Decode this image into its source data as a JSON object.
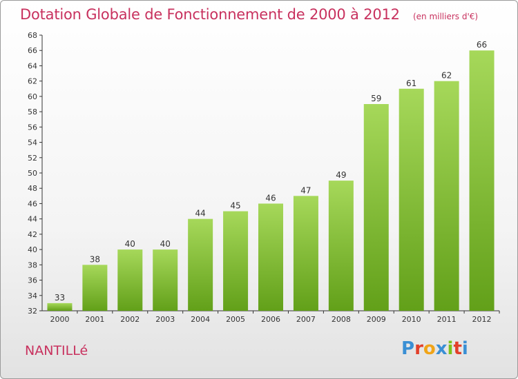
{
  "header": {
    "title": "Dotation Globale de Fonctionnement de 2000 à 2012",
    "subtitle": "(en milliers d'€)"
  },
  "footer": {
    "commune": "NANTILLé",
    "logo_text": "Proxiti"
  },
  "colors": {
    "title": "#c8315e",
    "bar_top": "#a6d85a",
    "bar_bottom": "#62a019",
    "logo_letters": [
      "#3a8fd4",
      "#e2402a",
      "#f0a418",
      "#3a8fd4",
      "#7cc21a",
      "#e2402a",
      "#3a8fd4"
    ]
  },
  "chart_data": {
    "type": "bar",
    "title": "Dotation Globale de Fonctionnement de 2000 à 2012",
    "subtitle": "(en milliers d'€)",
    "categories": [
      "2000",
      "2001",
      "2002",
      "2003",
      "2004",
      "2005",
      "2006",
      "2007",
      "2008",
      "2009",
      "2010",
      "2011",
      "2012"
    ],
    "values": [
      33,
      38,
      40,
      40,
      44,
      45,
      46,
      47,
      49,
      59,
      61,
      62,
      66
    ],
    "ylim": [
      32,
      68
    ],
    "yticks": [
      32,
      34,
      36,
      38,
      40,
      42,
      44,
      46,
      48,
      50,
      52,
      54,
      56,
      58,
      60,
      62,
      64,
      66,
      68
    ],
    "grid": false,
    "data_labels": true
  }
}
